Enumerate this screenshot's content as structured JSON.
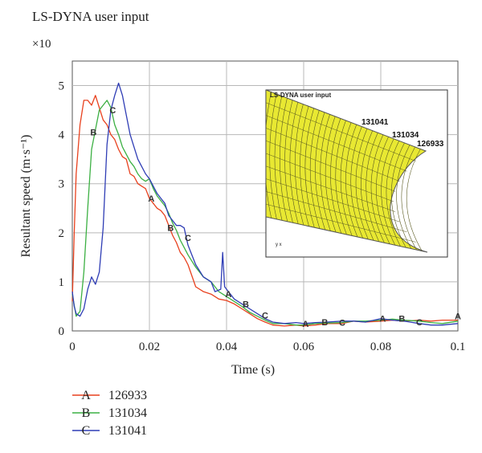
{
  "title": "LS-DYNA user input",
  "y_multiplier": "×10",
  "chart_data": {
    "type": "line",
    "xlabel": "Time (s)",
    "ylabel": "Resultant speed (m·s⁻¹)",
    "xlim": [
      0,
      0.1
    ],
    "ylim": [
      0,
      5.5
    ],
    "xticks": [
      0,
      0.02,
      0.04,
      0.06,
      0.08,
      0.1
    ],
    "xtick_labels": [
      "0",
      "0.02",
      "0.04",
      "0.06",
      "0.08",
      "0.1"
    ],
    "yticks": [
      0,
      1,
      2,
      3,
      4,
      5
    ],
    "ytick_labels": [
      "0",
      "1",
      "2",
      "3",
      "4",
      "5"
    ],
    "grid": true,
    "series": [
      {
        "marker": "A",
        "name": "126933",
        "color": "#e8411e",
        "x": [
          0,
          0.0005,
          0.001,
          0.002,
          0.003,
          0.004,
          0.005,
          0.006,
          0.007,
          0.008,
          0.009,
          0.01,
          0.011,
          0.012,
          0.013,
          0.014,
          0.015,
          0.016,
          0.017,
          0.018,
          0.019,
          0.02,
          0.021,
          0.022,
          0.023,
          0.024,
          0.025,
          0.026,
          0.027,
          0.028,
          0.029,
          0.03,
          0.032,
          0.034,
          0.036,
          0.038,
          0.04,
          0.042,
          0.044,
          0.046,
          0.048,
          0.05,
          0.052,
          0.055,
          0.058,
          0.06,
          0.063,
          0.066,
          0.07,
          0.073,
          0.076,
          0.08,
          0.083,
          0.086,
          0.09,
          0.093,
          0.096,
          0.1
        ],
        "y": [
          0.6,
          2.0,
          3.2,
          4.2,
          4.7,
          4.7,
          4.6,
          4.8,
          4.55,
          4.3,
          4.2,
          4.0,
          3.9,
          3.7,
          3.55,
          3.5,
          3.2,
          3.15,
          3.0,
          2.95,
          2.9,
          2.7,
          2.6,
          2.5,
          2.45,
          2.35,
          2.15,
          1.95,
          1.8,
          1.6,
          1.5,
          1.35,
          0.9,
          0.8,
          0.75,
          0.65,
          0.62,
          0.55,
          0.45,
          0.35,
          0.25,
          0.18,
          0.12,
          0.1,
          0.12,
          0.1,
          0.12,
          0.15,
          0.15,
          0.2,
          0.18,
          0.2,
          0.22,
          0.2,
          0.22,
          0.2,
          0.22,
          0.22
        ]
      },
      {
        "marker": "B",
        "name": "131034",
        "color": "#3cb043",
        "x": [
          0,
          0.001,
          0.002,
          0.003,
          0.004,
          0.005,
          0.006,
          0.007,
          0.008,
          0.009,
          0.01,
          0.011,
          0.012,
          0.013,
          0.014,
          0.015,
          0.016,
          0.017,
          0.018,
          0.019,
          0.02,
          0.021,
          0.022,
          0.023,
          0.024,
          0.025,
          0.026,
          0.027,
          0.028,
          0.029,
          0.03,
          0.032,
          0.034,
          0.036,
          0.038,
          0.04,
          0.042,
          0.044,
          0.046,
          0.048,
          0.05,
          0.052,
          0.055,
          0.058,
          0.06,
          0.063,
          0.066,
          0.07,
          0.073,
          0.076,
          0.08,
          0.083,
          0.086,
          0.09,
          0.093,
          0.096,
          0.1
        ],
        "y": [
          0.75,
          0.3,
          0.4,
          1.2,
          2.5,
          3.7,
          4.1,
          4.5,
          4.6,
          4.7,
          4.55,
          4.2,
          4.0,
          3.75,
          3.6,
          3.45,
          3.35,
          3.2,
          3.1,
          3.05,
          3.1,
          2.9,
          2.75,
          2.65,
          2.55,
          2.4,
          2.2,
          2.05,
          1.85,
          1.7,
          1.55,
          1.3,
          1.1,
          1.0,
          0.8,
          0.7,
          0.6,
          0.5,
          0.38,
          0.3,
          0.22,
          0.15,
          0.15,
          0.12,
          0.12,
          0.15,
          0.16,
          0.17,
          0.2,
          0.2,
          0.22,
          0.24,
          0.22,
          0.2,
          0.17,
          0.15,
          0.2
        ]
      },
      {
        "marker": "C",
        "name": "131041",
        "color": "#2f3db5",
        "x": [
          0,
          0.0005,
          0.001,
          0.002,
          0.003,
          0.004,
          0.005,
          0.006,
          0.007,
          0.008,
          0.009,
          0.01,
          0.011,
          0.012,
          0.013,
          0.014,
          0.015,
          0.016,
          0.017,
          0.018,
          0.019,
          0.02,
          0.021,
          0.022,
          0.023,
          0.024,
          0.025,
          0.026,
          0.027,
          0.028,
          0.029,
          0.03,
          0.032,
          0.034,
          0.036,
          0.037,
          0.0385,
          0.039,
          0.0395,
          0.04,
          0.042,
          0.044,
          0.046,
          0.048,
          0.05,
          0.052,
          0.055,
          0.058,
          0.06,
          0.063,
          0.066,
          0.07,
          0.073,
          0.076,
          0.08,
          0.083,
          0.086,
          0.09,
          0.093,
          0.096,
          0.1
        ],
        "y": [
          0.8,
          0.5,
          0.35,
          0.3,
          0.45,
          0.85,
          1.1,
          0.95,
          1.2,
          2.1,
          3.8,
          4.5,
          4.8,
          5.05,
          4.8,
          4.4,
          4.0,
          3.75,
          3.5,
          3.35,
          3.2,
          3.1,
          2.95,
          2.8,
          2.7,
          2.6,
          2.35,
          2.25,
          2.15,
          2.15,
          2.1,
          1.75,
          1.35,
          1.1,
          1.0,
          0.8,
          0.85,
          1.6,
          0.9,
          0.85,
          0.65,
          0.55,
          0.45,
          0.35,
          0.25,
          0.18,
          0.15,
          0.17,
          0.15,
          0.17,
          0.18,
          0.2,
          0.2,
          0.18,
          0.25,
          0.22,
          0.2,
          0.15,
          0.12,
          0.12,
          0.15
        ]
      }
    ]
  },
  "markers": [
    {
      "label": "B",
      "x": 0.0055,
      "y": 4.05,
      "color": "#3cb043"
    },
    {
      "label": "C",
      "x": 0.0105,
      "y": 4.5,
      "color": "#2f3db5"
    },
    {
      "label": "A",
      "x": 0.0205,
      "y": 2.7,
      "color": "#e8411e"
    },
    {
      "label": "B",
      "x": 0.0255,
      "y": 2.1,
      "color": "#3cb043"
    },
    {
      "label": "C",
      "x": 0.03,
      "y": 1.9,
      "color": "#2f3db5"
    },
    {
      "label": "A",
      "x": 0.0405,
      "y": 0.75,
      "color": "#e8411e"
    },
    {
      "label": "B",
      "x": 0.045,
      "y": 0.55,
      "color": "#3cb043"
    },
    {
      "label": "C",
      "x": 0.05,
      "y": 0.32,
      "color": "#2f3db5"
    },
    {
      "label": "A",
      "x": 0.0605,
      "y": 0.15,
      "color": "#e8411e"
    },
    {
      "label": "B",
      "x": 0.0655,
      "y": 0.18,
      "color": "#3cb043"
    },
    {
      "label": "C",
      "x": 0.07,
      "y": 0.17,
      "color": "#2f3db5"
    },
    {
      "label": "A",
      "x": 0.0805,
      "y": 0.25,
      "color": "#e8411e"
    },
    {
      "label": "B",
      "x": 0.0855,
      "y": 0.25,
      "color": "#3cb043"
    },
    {
      "label": "C",
      "x": 0.09,
      "y": 0.18,
      "color": "#2f3db5"
    },
    {
      "label": "A",
      "x": 0.1,
      "y": 0.3,
      "color": "#e8411e"
    }
  ],
  "inset": {
    "title": "LS-DYNA user input",
    "node_labels": [
      "131041",
      "131034",
      "126933"
    ],
    "mesh_color": "#e8e832",
    "axis_glyph": "y x"
  },
  "legend": [
    {
      "marker": "A",
      "label": "126933",
      "color": "#e8411e"
    },
    {
      "marker": "B",
      "label": "131034",
      "color": "#3cb043"
    },
    {
      "marker": "C",
      "label": "131041",
      "color": "#2f3db5"
    }
  ]
}
